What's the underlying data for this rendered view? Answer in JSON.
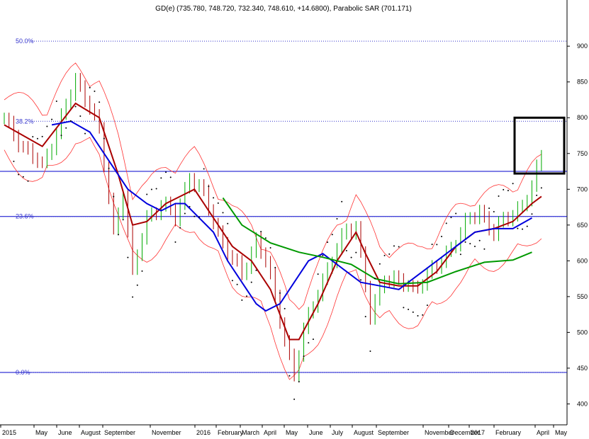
{
  "chart_data": {
    "type": "line",
    "title": "GD(e) (735.780, 748.720, 732.340, 748.610, +14.6800), Parabolic SAR (701.171)",
    "xlabel": "",
    "ylabel": "",
    "ylim": [
      385,
      925
    ],
    "grid": false,
    "y_ticks": [
      "900",
      "850",
      "800",
      "750",
      "700",
      "650",
      "600",
      "550",
      "500",
      "450",
      "400"
    ],
    "y_tick_values": [
      900,
      850,
      800,
      750,
      700,
      650,
      600,
      550,
      500,
      450,
      400
    ],
    "x_tick_labels": [
      "2015",
      "May",
      "June",
      "August",
      "September",
      "November",
      "2016",
      "February",
      "March",
      "April",
      "May",
      "June",
      "July",
      "August",
      "September",
      "November",
      "December",
      "2017",
      "February",
      "April",
      "May"
    ],
    "fib_levels": [
      {
        "label": "50.0%",
        "value": 907
      },
      {
        "label": "38.2%",
        "value": 795
      },
      {
        "label": "23.6%",
        "value": 662
      },
      {
        "label": "0.0%",
        "value": 444
      }
    ],
    "horizontal_lines": [
      725,
      662,
      444
    ],
    "highlight_box": {
      "y_range": [
        722,
        800
      ]
    },
    "colors": {
      "fib": "#3333cc",
      "hline": "#0000cc",
      "price": "#00aa00",
      "sar": "#000000",
      "ma_short": "#aa0000",
      "ma_mid": "#0000dd",
      "ma_long": "#009900",
      "band": "#ff3333"
    },
    "price_keypoints": [
      [
        0,
        795
      ],
      [
        4,
        760
      ],
      [
        8,
        730
      ],
      [
        12,
        800
      ],
      [
        15,
        850
      ],
      [
        18,
        820
      ],
      [
        20,
        780
      ],
      [
        23,
        640
      ],
      [
        25,
        700
      ],
      [
        27,
        580
      ],
      [
        30,
        660
      ],
      [
        33,
        680
      ],
      [
        36,
        660
      ],
      [
        39,
        720
      ],
      [
        42,
        690
      ],
      [
        45,
        640
      ],
      [
        48,
        600
      ],
      [
        50,
        580
      ],
      [
        53,
        630
      ],
      [
        55,
        600
      ],
      [
        58,
        520
      ],
      [
        61,
        440
      ],
      [
        63,
        500
      ],
      [
        66,
        560
      ],
      [
        69,
        600
      ],
      [
        72,
        645
      ],
      [
        74,
        650
      ],
      [
        77,
        520
      ],
      [
        80,
        580
      ],
      [
        83,
        570
      ],
      [
        86,
        560
      ],
      [
        88,
        575
      ],
      [
        91,
        590
      ],
      [
        94,
        620
      ],
      [
        97,
        650
      ],
      [
        100,
        670
      ],
      [
        103,
        640
      ],
      [
        106,
        660
      ],
      [
        109,
        680
      ],
      [
        111,
        700
      ],
      [
        113,
        748
      ]
    ],
    "series": [
      {
        "values": [
          [
            0,
            790
          ],
          [
            8,
            760
          ],
          [
            15,
            820
          ],
          [
            20,
            800
          ],
          [
            24,
            720
          ],
          [
            27,
            650
          ],
          [
            30,
            655
          ],
          [
            34,
            680
          ],
          [
            37,
            690
          ],
          [
            40,
            700
          ],
          [
            44,
            660
          ],
          [
            48,
            620
          ],
          [
            52,
            600
          ],
          [
            56,
            560
          ],
          [
            60,
            490
          ],
          [
            62,
            490
          ],
          [
            66,
            540
          ],
          [
            70,
            600
          ],
          [
            74,
            640
          ],
          [
            76,
            610
          ],
          [
            79,
            570
          ],
          [
            83,
            565
          ],
          [
            87,
            565
          ],
          [
            91,
            585
          ],
          [
            95,
            620
          ],
          [
            99,
            640
          ],
          [
            103,
            645
          ],
          [
            107,
            655
          ],
          [
            111,
            680
          ],
          [
            113,
            690
          ]
        ]
      },
      {
        "values": [
          [
            10,
            790
          ],
          [
            14,
            795
          ],
          [
            18,
            780
          ],
          [
            22,
            740
          ],
          [
            26,
            700
          ],
          [
            30,
            680
          ],
          [
            33,
            670
          ],
          [
            36,
            680
          ],
          [
            38,
            680
          ],
          [
            41,
            660
          ],
          [
            44,
            640
          ],
          [
            47,
            600
          ],
          [
            50,
            570
          ],
          [
            53,
            540
          ],
          [
            55,
            530
          ],
          [
            58,
            540
          ],
          [
            61,
            570
          ],
          [
            64,
            600
          ],
          [
            67,
            610
          ],
          [
            71,
            590
          ],
          [
            75,
            570
          ],
          [
            79,
            565
          ],
          [
            83,
            560
          ],
          [
            87,
            580
          ],
          [
            91,
            600
          ],
          [
            95,
            620
          ],
          [
            99,
            640
          ],
          [
            103,
            645
          ],
          [
            107,
            645
          ],
          [
            111,
            660
          ]
        ]
      },
      {
        "values": [
          [
            46,
            688
          ],
          [
            50,
            650
          ],
          [
            56,
            625
          ],
          [
            62,
            612
          ],
          [
            67,
            605
          ],
          [
            73,
            595
          ],
          [
            78,
            575
          ],
          [
            83,
            568
          ],
          [
            89,
            570
          ],
          [
            95,
            585
          ],
          [
            101,
            598
          ],
          [
            107,
            601
          ],
          [
            111,
            612
          ]
        ]
      }
    ]
  }
}
